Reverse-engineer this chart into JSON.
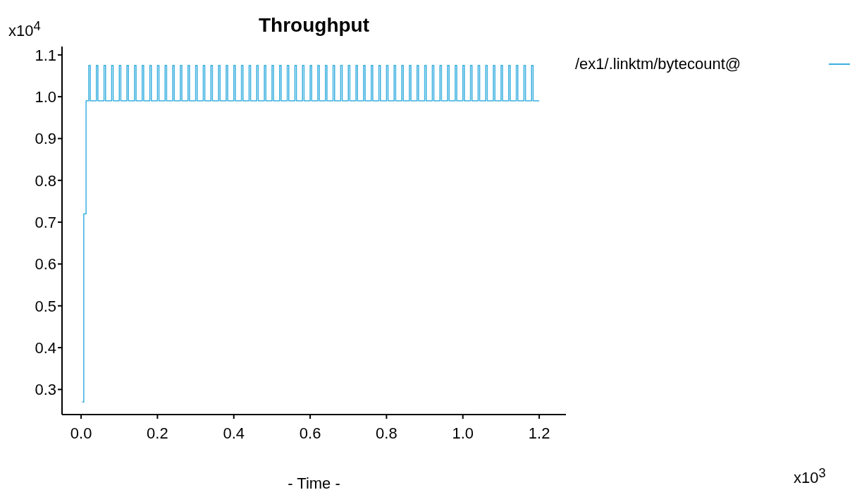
{
  "chart_data": {
    "type": "step",
    "title": "Throughput",
    "xlabel": "- Time -",
    "annotations": [
      "x10$^{4}$",
      "x10$^{3}$"
    ],
    "xlim": [
      -0.05,
      1.27
    ],
    "ylim": [
      0.24,
      1.12
    ],
    "xticks": [
      {
        "value": 0,
        "label": "0.0"
      },
      0.2,
      0.4,
      0.6,
      0.8,
      {
        "value": 1,
        "label": "1.0"
      },
      1.2
    ],
    "yticks": [
      0.3,
      0.4,
      0.5,
      0.6,
      0.7,
      0.8,
      0.9,
      {
        "value": 1,
        "label": "1.0"
      },
      1.1
    ],
    "legend": "right",
    "marker": "none",
    "series": [
      {
        "name": "/ex1/.linktm/bytecount@",
        "color": "#3bb0e0",
        "x": [
          0.003,
          0.007,
          0.013,
          0.02,
          0.024,
          0.04,
          0.044,
          0.06,
          0.064,
          0.08,
          0.084,
          0.1,
          0.104,
          0.12,
          0.124,
          0.14,
          0.144,
          0.16,
          0.164,
          0.18,
          0.184,
          0.2,
          0.204,
          0.22,
          0.224,
          0.24,
          0.244,
          0.26,
          0.264,
          0.28,
          0.284,
          0.3,
          0.304,
          0.32,
          0.324,
          0.34,
          0.344,
          0.36,
          0.364,
          0.38,
          0.384,
          0.4,
          0.404,
          0.42,
          0.424,
          0.44,
          0.444,
          0.46,
          0.464,
          0.48,
          0.484,
          0.5,
          0.504,
          0.52,
          0.524,
          0.54,
          0.544,
          0.56,
          0.564,
          0.58,
          0.584,
          0.6,
          0.604,
          0.62,
          0.624,
          0.64,
          0.644,
          0.66,
          0.664,
          0.68,
          0.684,
          0.7,
          0.704,
          0.72,
          0.724,
          0.74,
          0.744,
          0.76,
          0.764,
          0.78,
          0.784,
          0.8,
          0.804,
          0.82,
          0.824,
          0.84,
          0.844,
          0.86,
          0.864,
          0.88,
          0.884,
          0.9,
          0.904,
          0.92,
          0.924,
          0.94,
          0.944,
          0.96,
          0.964,
          0.98,
          0.984,
          1.0,
          1.004,
          1.02,
          1.024,
          1.04,
          1.044,
          1.06,
          1.064,
          1.08,
          1.084,
          1.1,
          1.104,
          1.12,
          1.124,
          1.14,
          1.144,
          1.16,
          1.164,
          1.18,
          1.184,
          1.2
        ],
        "values": [
          0.27,
          0.72,
          0.99,
          1.075,
          0.99,
          1.075,
          0.99,
          1.075,
          0.99,
          1.075,
          0.99,
          1.075,
          0.99,
          1.075,
          0.99,
          1.075,
          0.99,
          1.075,
          0.99,
          1.075,
          0.99,
          1.075,
          0.99,
          1.075,
          0.99,
          1.075,
          0.99,
          1.075,
          0.99,
          1.075,
          0.99,
          1.075,
          0.99,
          1.075,
          0.99,
          1.075,
          0.99,
          1.075,
          0.99,
          1.075,
          0.99,
          1.075,
          0.99,
          1.075,
          0.99,
          1.075,
          0.99,
          1.075,
          0.99,
          1.075,
          0.99,
          1.075,
          0.99,
          1.075,
          0.99,
          1.075,
          0.99,
          1.075,
          0.99,
          1.075,
          0.99,
          1.075,
          0.99,
          1.075,
          0.99,
          1.075,
          0.99,
          1.075,
          0.99,
          1.075,
          0.99,
          1.075,
          0.99,
          1.075,
          0.99,
          1.075,
          0.99,
          1.075,
          0.99,
          1.075,
          0.99,
          1.075,
          0.99,
          1.075,
          0.99,
          1.075,
          0.99,
          1.075,
          0.99,
          1.075,
          0.99,
          1.075,
          0.99,
          1.075,
          0.99,
          1.075,
          0.99,
          1.075,
          0.99,
          1.075,
          0.99,
          1.075,
          0.99,
          1.075,
          0.99,
          1.075,
          0.99,
          1.075,
          0.99,
          1.075,
          0.99,
          1.075,
          0.99,
          1.075,
          0.99,
          1.075,
          0.99,
          1.075,
          0.99,
          1.075,
          0.99,
          0.99
        ]
      }
    ]
  }
}
